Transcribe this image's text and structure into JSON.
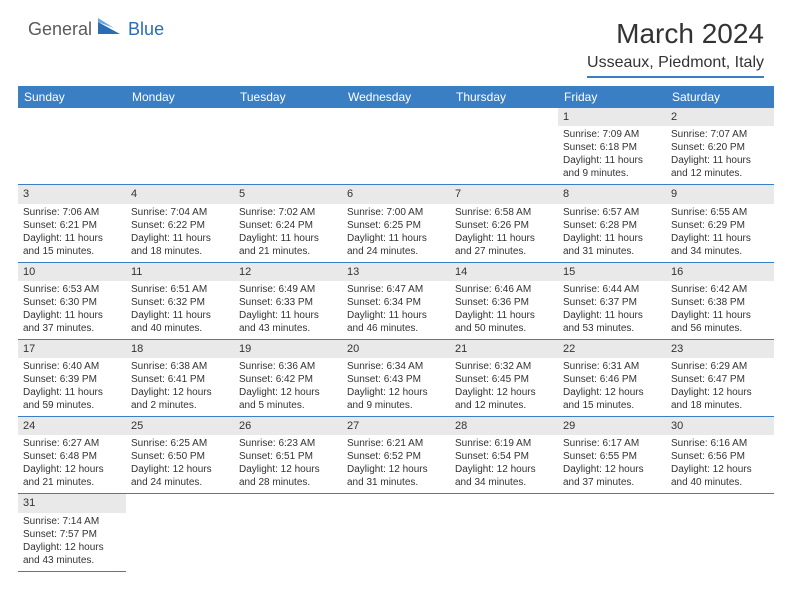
{
  "logo": {
    "part1": "General",
    "part2": "Blue"
  },
  "title": "March 2024",
  "location": "Usseaux, Piedmont, Italy",
  "colors": {
    "header_bg": "#3a7fc4",
    "header_text": "#ffffff",
    "daynum_bg": "#e9e9e9",
    "border": "#3a7fc4",
    "text": "#333333",
    "logo_gray": "#5a5a5a",
    "logo_blue": "#2a6db5"
  },
  "daysOfWeek": [
    "Sunday",
    "Monday",
    "Tuesday",
    "Wednesday",
    "Thursday",
    "Friday",
    "Saturday"
  ],
  "weeks": [
    [
      null,
      null,
      null,
      null,
      null,
      {
        "n": "1",
        "sr": "Sunrise: 7:09 AM",
        "ss": "Sunset: 6:18 PM",
        "dl": "Daylight: 11 hours and 9 minutes."
      },
      {
        "n": "2",
        "sr": "Sunrise: 7:07 AM",
        "ss": "Sunset: 6:20 PM",
        "dl": "Daylight: 11 hours and 12 minutes."
      }
    ],
    [
      {
        "n": "3",
        "sr": "Sunrise: 7:06 AM",
        "ss": "Sunset: 6:21 PM",
        "dl": "Daylight: 11 hours and 15 minutes."
      },
      {
        "n": "4",
        "sr": "Sunrise: 7:04 AM",
        "ss": "Sunset: 6:22 PM",
        "dl": "Daylight: 11 hours and 18 minutes."
      },
      {
        "n": "5",
        "sr": "Sunrise: 7:02 AM",
        "ss": "Sunset: 6:24 PM",
        "dl": "Daylight: 11 hours and 21 minutes."
      },
      {
        "n": "6",
        "sr": "Sunrise: 7:00 AM",
        "ss": "Sunset: 6:25 PM",
        "dl": "Daylight: 11 hours and 24 minutes."
      },
      {
        "n": "7",
        "sr": "Sunrise: 6:58 AM",
        "ss": "Sunset: 6:26 PM",
        "dl": "Daylight: 11 hours and 27 minutes."
      },
      {
        "n": "8",
        "sr": "Sunrise: 6:57 AM",
        "ss": "Sunset: 6:28 PM",
        "dl": "Daylight: 11 hours and 31 minutes."
      },
      {
        "n": "9",
        "sr": "Sunrise: 6:55 AM",
        "ss": "Sunset: 6:29 PM",
        "dl": "Daylight: 11 hours and 34 minutes."
      }
    ],
    [
      {
        "n": "10",
        "sr": "Sunrise: 6:53 AM",
        "ss": "Sunset: 6:30 PM",
        "dl": "Daylight: 11 hours and 37 minutes."
      },
      {
        "n": "11",
        "sr": "Sunrise: 6:51 AM",
        "ss": "Sunset: 6:32 PM",
        "dl": "Daylight: 11 hours and 40 minutes."
      },
      {
        "n": "12",
        "sr": "Sunrise: 6:49 AM",
        "ss": "Sunset: 6:33 PM",
        "dl": "Daylight: 11 hours and 43 minutes."
      },
      {
        "n": "13",
        "sr": "Sunrise: 6:47 AM",
        "ss": "Sunset: 6:34 PM",
        "dl": "Daylight: 11 hours and 46 minutes."
      },
      {
        "n": "14",
        "sr": "Sunrise: 6:46 AM",
        "ss": "Sunset: 6:36 PM",
        "dl": "Daylight: 11 hours and 50 minutes."
      },
      {
        "n": "15",
        "sr": "Sunrise: 6:44 AM",
        "ss": "Sunset: 6:37 PM",
        "dl": "Daylight: 11 hours and 53 minutes."
      },
      {
        "n": "16",
        "sr": "Sunrise: 6:42 AM",
        "ss": "Sunset: 6:38 PM",
        "dl": "Daylight: 11 hours and 56 minutes."
      }
    ],
    [
      {
        "n": "17",
        "sr": "Sunrise: 6:40 AM",
        "ss": "Sunset: 6:39 PM",
        "dl": "Daylight: 11 hours and 59 minutes."
      },
      {
        "n": "18",
        "sr": "Sunrise: 6:38 AM",
        "ss": "Sunset: 6:41 PM",
        "dl": "Daylight: 12 hours and 2 minutes."
      },
      {
        "n": "19",
        "sr": "Sunrise: 6:36 AM",
        "ss": "Sunset: 6:42 PM",
        "dl": "Daylight: 12 hours and 5 minutes."
      },
      {
        "n": "20",
        "sr": "Sunrise: 6:34 AM",
        "ss": "Sunset: 6:43 PM",
        "dl": "Daylight: 12 hours and 9 minutes."
      },
      {
        "n": "21",
        "sr": "Sunrise: 6:32 AM",
        "ss": "Sunset: 6:45 PM",
        "dl": "Daylight: 12 hours and 12 minutes."
      },
      {
        "n": "22",
        "sr": "Sunrise: 6:31 AM",
        "ss": "Sunset: 6:46 PM",
        "dl": "Daylight: 12 hours and 15 minutes."
      },
      {
        "n": "23",
        "sr": "Sunrise: 6:29 AM",
        "ss": "Sunset: 6:47 PM",
        "dl": "Daylight: 12 hours and 18 minutes."
      }
    ],
    [
      {
        "n": "24",
        "sr": "Sunrise: 6:27 AM",
        "ss": "Sunset: 6:48 PM",
        "dl": "Daylight: 12 hours and 21 minutes."
      },
      {
        "n": "25",
        "sr": "Sunrise: 6:25 AM",
        "ss": "Sunset: 6:50 PM",
        "dl": "Daylight: 12 hours and 24 minutes."
      },
      {
        "n": "26",
        "sr": "Sunrise: 6:23 AM",
        "ss": "Sunset: 6:51 PM",
        "dl": "Daylight: 12 hours and 28 minutes."
      },
      {
        "n": "27",
        "sr": "Sunrise: 6:21 AM",
        "ss": "Sunset: 6:52 PM",
        "dl": "Daylight: 12 hours and 31 minutes."
      },
      {
        "n": "28",
        "sr": "Sunrise: 6:19 AM",
        "ss": "Sunset: 6:54 PM",
        "dl": "Daylight: 12 hours and 34 minutes."
      },
      {
        "n": "29",
        "sr": "Sunrise: 6:17 AM",
        "ss": "Sunset: 6:55 PM",
        "dl": "Daylight: 12 hours and 37 minutes."
      },
      {
        "n": "30",
        "sr": "Sunrise: 6:16 AM",
        "ss": "Sunset: 6:56 PM",
        "dl": "Daylight: 12 hours and 40 minutes."
      }
    ],
    [
      {
        "n": "31",
        "sr": "Sunrise: 7:14 AM",
        "ss": "Sunset: 7:57 PM",
        "dl": "Daylight: 12 hours and 43 minutes."
      },
      null,
      null,
      null,
      null,
      null,
      null
    ]
  ]
}
